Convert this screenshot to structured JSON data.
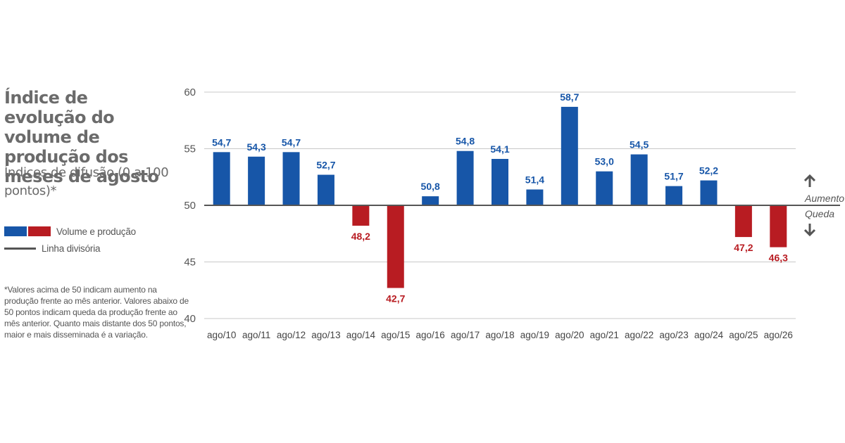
{
  "title": "Índice de evolução do volume de produção dos meses de agosto",
  "subtitle": "Índices de difusão (0 a 100 pontos)*",
  "legend": {
    "bars_label": "Volume e produção",
    "line_label": "Linha divisória"
  },
  "footnote": "*Valores acima de 50 indicam aumento na produção frente ao mês anterior. Valores abaixo de 50 pontos indicam queda da produção frente ao mês anterior. Quanto mais distante dos 50 pontos, maior e mais disseminada é a variação.",
  "direction": {
    "up_label": "Aumento",
    "down_label": "Queda",
    "up_icon": "arrow-up-icon",
    "down_icon": "arrow-down-icon"
  },
  "colors": {
    "increase": "#1756a8",
    "decrease": "#b81c22",
    "divider": "#555555",
    "grid": "#c8c8c8"
  },
  "chart_data": {
    "type": "bar",
    "categories": [
      "ago/10",
      "ago/11",
      "ago/12",
      "ago/13",
      "ago/14",
      "ago/15",
      "ago/16",
      "ago/17",
      "ago/18",
      "ago/19",
      "ago/20",
      "ago/21",
      "ago/22",
      "ago/23",
      "ago/24",
      "ago/25",
      "ago/26"
    ],
    "values": [
      54.7,
      54.3,
      54.7,
      52.7,
      48.2,
      42.7,
      50.8,
      54.8,
      54.1,
      51.4,
      58.7,
      53.0,
      54.5,
      51.7,
      52.2,
      47.2,
      46.3
    ],
    "value_labels": [
      "54,7",
      "54,3",
      "54,7",
      "52,7",
      "48,2",
      "42,7",
      "50,8",
      "54,8",
      "54,1",
      "51,4",
      "58,7",
      "53,0",
      "54,5",
      "51,7",
      "52,2",
      "47,2",
      "46,3"
    ],
    "baseline": 50,
    "ylim": [
      40,
      60
    ],
    "yticks": [
      "40",
      "45",
      "50",
      "55",
      "60"
    ],
    "grid": true
  }
}
